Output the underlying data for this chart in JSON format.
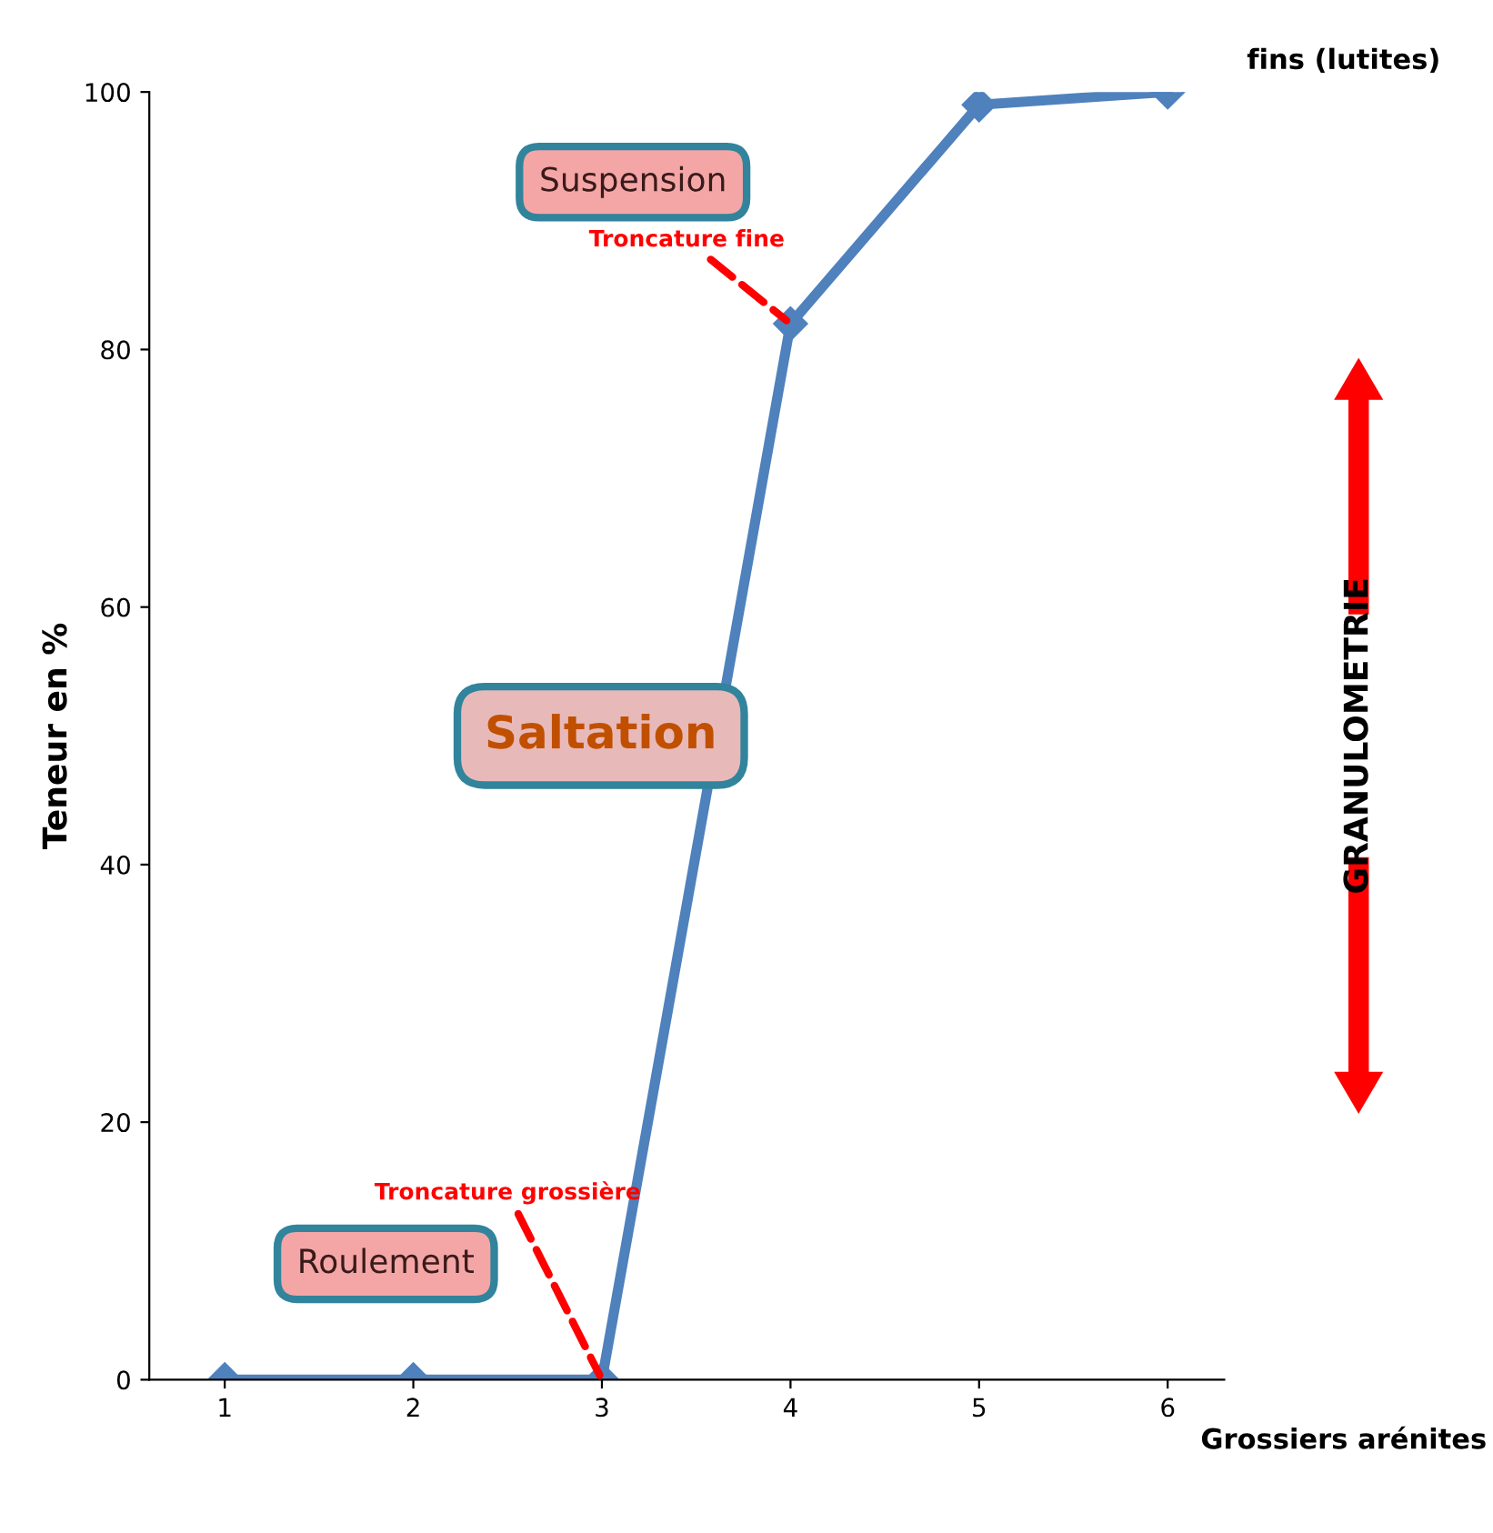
{
  "chart_data": {
    "type": "line",
    "ylabel": "Teneur en %",
    "x": [
      1,
      2,
      3,
      4,
      5,
      6
    ],
    "series": [
      {
        "color": "#4f81bd",
        "values": [
          0,
          0,
          0,
          82,
          99,
          100
        ]
      }
    ],
    "xlim": [
      0.6,
      6.3
    ],
    "xticks": [
      1,
      2,
      3,
      4,
      5,
      6
    ],
    "ylim": [
      0,
      100
    ],
    "yticks": [
      0,
      20,
      40,
      60,
      80,
      100
    ],
    "marker": "diamond",
    "line_style": "solid",
    "grid": false,
    "legend": false,
    "annotations": [
      "GRANULOMETRIE",
      "fins (lutites)",
      "Grossiers arénites",
      "Suspension",
      "Saltation",
      "Roulement",
      {
        "text": "Troncature fine",
        "x": 4,
        "y": 82
      },
      {
        "text": "Troncature grossière",
        "x": 3,
        "y": 0
      }
    ]
  }
}
